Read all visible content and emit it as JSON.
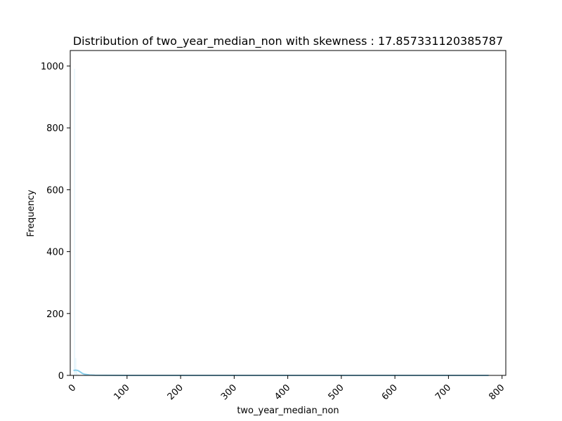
{
  "chart_data": {
    "type": "bar",
    "title": "Distribution of two_year_median_non with skewness : 17.857331120385787",
    "xlabel": "two_year_median_non",
    "ylabel": "Frequency",
    "xlim": [
      -6,
      807
    ],
    "ylim": [
      0,
      1050
    ],
    "x_ticks": [
      "0",
      "100",
      "200",
      "300",
      "400",
      "500",
      "600",
      "700",
      "800"
    ],
    "y_ticks": [
      "0",
      "200",
      "400",
      "600",
      "800",
      "1000"
    ],
    "grid": false,
    "bars": [
      {
        "x0": 1,
        "x1": 3,
        "value": 990
      },
      {
        "x0": 3,
        "x1": 5,
        "value": 55
      },
      {
        "x0": 5,
        "x1": 7,
        "value": 12
      },
      {
        "x0": 7,
        "x1": 9,
        "value": 4
      },
      {
        "x0": 9,
        "x1": 11,
        "value": 2
      }
    ],
    "kde": {
      "x": [
        0,
        4,
        8,
        12,
        16,
        20,
        30,
        40,
        60,
        100,
        200,
        300,
        400,
        500,
        600,
        700,
        775
      ],
      "y": [
        16,
        17,
        16,
        12,
        7,
        4,
        1.5,
        0.6,
        0.2,
        0.1,
        0.05,
        0.05,
        0.05,
        0.05,
        0.05,
        0.05,
        0.05
      ]
    },
    "colors": {
      "bar_fill": "#87ceeb",
      "kde_line": "#87ceeb",
      "axis": "#000000"
    }
  }
}
